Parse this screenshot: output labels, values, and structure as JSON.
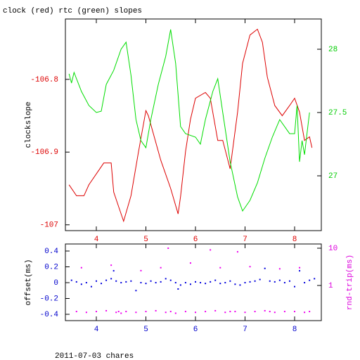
{
  "chart_data": [
    {
      "type": "line",
      "title": "clock (red) rtc (green) slopes",
      "ylabel": "clockslope",
      "xlim": [
        3.376,
        8.539
      ],
      "xticks": [
        4,
        5,
        6,
        7,
        8
      ],
      "ylim": [
        -107.008,
        -106.717
      ],
      "yticks": [
        -106.8,
        -106.9,
        -107
      ],
      "y2lim": [
        26.567,
        28.239
      ],
      "y2ticks": [
        28,
        27.5,
        27
      ],
      "xtick_color": "#dd0000",
      "ytick_color": "#dd0000",
      "y2tick_color": "#00cc00",
      "series": [
        {
          "color": "#dd0000",
          "x": [
            3.45,
            3.6,
            3.75,
            3.85,
            4.0,
            4.15,
            4.3,
            4.35,
            4.45,
            4.55,
            4.7,
            4.85,
            5.0,
            5.05,
            5.3,
            5.5,
            5.65,
            5.7,
            5.8,
            5.9,
            6.0,
            6.2,
            6.3,
            6.45,
            6.55,
            6.7,
            6.85,
            6.95,
            7.1,
            7.25,
            7.35,
            7.45,
            7.6,
            7.75,
            7.9,
            8.0,
            8.1,
            8.2,
            8.3,
            8.35
          ],
          "values": [
            -106.945,
            -106.96,
            -106.96,
            -106.945,
            -106.93,
            -106.915,
            -106.915,
            -106.955,
            -106.975,
            -106.995,
            -106.96,
            -106.9,
            -106.843,
            -106.85,
            -106.911,
            -106.95,
            -106.985,
            -106.961,
            -106.899,
            -106.855,
            -106.826,
            -106.818,
            -106.826,
            -106.884,
            -106.884,
            -106.923,
            -106.845,
            -106.778,
            -106.739,
            -106.731,
            -106.749,
            -106.797,
            -106.836,
            -106.85,
            -106.836,
            -106.826,
            -106.845,
            -106.884,
            -106.879,
            -106.894
          ]
        },
        {
          "color": "#00dd00",
          "axis": "y2",
          "x": [
            3.45,
            3.5,
            3.55,
            3.7,
            3.85,
            4.0,
            4.1,
            4.2,
            4.35,
            4.5,
            4.6,
            4.7,
            4.8,
            4.9,
            5.0,
            5.1,
            5.25,
            5.4,
            5.5,
            5.6,
            5.7,
            5.8,
            6.0,
            6.1,
            6.2,
            6.35,
            6.45,
            6.55,
            6.7,
            6.85,
            6.95,
            7.1,
            7.25,
            7.4,
            7.55,
            7.7,
            7.9,
            8.0,
            8.05,
            8.1,
            8.15,
            8.2,
            8.25,
            8.3
          ],
          "values": [
            27.806,
            27.733,
            27.817,
            27.667,
            27.556,
            27.5,
            27.511,
            27.722,
            27.833,
            28.0,
            28.056,
            27.794,
            27.444,
            27.278,
            27.222,
            27.444,
            27.722,
            27.944,
            28.156,
            27.889,
            27.389,
            27.333,
            27.306,
            27.25,
            27.444,
            27.667,
            27.767,
            27.5,
            27.111,
            26.833,
            26.722,
            26.806,
            26.944,
            27.139,
            27.306,
            27.444,
            27.333,
            27.333,
            27.556,
            27.111,
            27.278,
            27.167,
            27.333,
            27.5
          ]
        }
      ]
    },
    {
      "type": "scatter",
      "ylabel": "offset(ms)",
      "y2label": "rnd-trip(ms)",
      "xlim": [
        3.376,
        8.539
      ],
      "xticks": [
        4,
        5,
        6,
        7,
        8
      ],
      "ylim": [
        -0.48,
        0.489
      ],
      "yticks": [
        0.4,
        0.2,
        0,
        -0.2,
        -0.4
      ],
      "y2lim": [
        0.114,
        12.98
      ],
      "y2ticks": [
        10,
        1
      ],
      "y2log": true,
      "xtick_color": "#0000cc",
      "ytick_color": "#0000cc",
      "y2tick_color": "#dd00dd",
      "series": [
        {
          "color": "#0000dd",
          "x": [
            3.5,
            3.6,
            3.7,
            3.8,
            3.9,
            4.0,
            4.1,
            4.2,
            4.3,
            4.35,
            4.4,
            4.5,
            4.6,
            4.7,
            4.8,
            4.9,
            5.0,
            5.1,
            5.2,
            5.3,
            5.4,
            5.5,
            5.6,
            5.65,
            5.7,
            5.8,
            5.9,
            6.0,
            6.1,
            6.2,
            6.3,
            6.4,
            6.5,
            6.6,
            6.7,
            6.8,
            6.9,
            7.0,
            7.1,
            7.2,
            7.3,
            7.4,
            7.5,
            7.6,
            7.7,
            7.8,
            7.9,
            8.0,
            8.1,
            8.2,
            8.3,
            8.4
          ],
          "values": [
            0.03,
            0.01,
            -0.02,
            0,
            -0.05,
            0.02,
            -0.01,
            0.03,
            0.05,
            0.15,
            0.02,
            0,
            0.01,
            0.02,
            -0.1,
            0,
            -0.01,
            0.02,
            0,
            0.01,
            0.05,
            0.03,
            0,
            -0.08,
            -0.03,
            0,
            -0.02,
            0.01,
            0,
            -0.01,
            0.01,
            0.03,
            -0.01,
            0,
            0.02,
            -0.02,
            -0.03,
            0,
            0.01,
            0.02,
            0.04,
            0.18,
            0.02,
            0.01,
            0.03,
            0,
            0.02,
            -0.05,
            0.15,
            0,
            0.03,
            0.05
          ]
        },
        {
          "color": "#ee00ee",
          "axis": "y2",
          "x": [
            3.6,
            3.8,
            4.0,
            4.2,
            4.4,
            4.45,
            4.5,
            4.6,
            4.8,
            5.0,
            5.2,
            5.4,
            5.5,
            5.6,
            5.8,
            6.0,
            6.2,
            6.4,
            6.6,
            6.7,
            6.8,
            7.0,
            7.2,
            7.4,
            7.5,
            7.6,
            7.8,
            8.0,
            8.2,
            8.3,
            3.7,
            4.3,
            4.9,
            5.3,
            5.9,
            6.5,
            7.1,
            7.7,
            8.1,
            5.45,
            6.3,
            6.85
          ],
          "values": [
            0.2,
            0.19,
            0.2,
            0.21,
            0.19,
            0.2,
            0.18,
            0.2,
            0.19,
            0.2,
            0.21,
            0.19,
            0.2,
            0.18,
            0.2,
            0.19,
            0.2,
            0.21,
            0.19,
            0.2,
            0.2,
            0.19,
            0.2,
            0.21,
            0.2,
            0.19,
            0.2,
            0.2,
            0.19,
            0.2,
            3,
            3.5,
            2.5,
            3,
            4,
            3,
            3.2,
            2.8,
            3,
            10,
            9,
            8
          ]
        }
      ]
    }
  ],
  "footer": "2011-07-03 chares"
}
